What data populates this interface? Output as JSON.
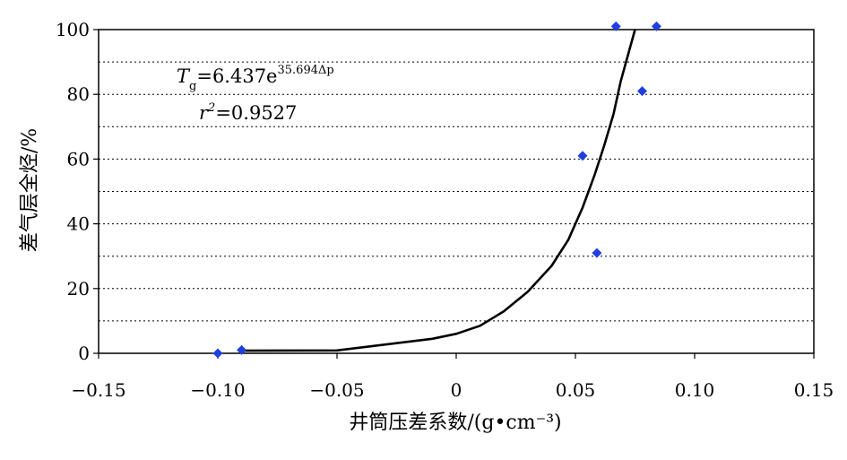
{
  "chart_data": {
    "type": "scatter",
    "title": "",
    "xlabel": "井筒压差系数/(g•cm⁻³)",
    "ylabel": "差气层全烃/%",
    "xlim": [
      -0.15,
      0.15
    ],
    "ylim": [
      0,
      100
    ],
    "x_ticks": [
      -0.15,
      -0.1,
      -0.05,
      0,
      0.05,
      0.1,
      0.15
    ],
    "x_tick_labels": [
      "−0.15",
      "−0.10",
      "−0.05",
      "0",
      "0.05",
      "0.10",
      "0.15"
    ],
    "y_ticks": [
      0,
      20,
      40,
      60,
      80,
      100
    ],
    "y_tick_labels": [
      "0",
      "20",
      "40",
      "60",
      "80",
      "100"
    ],
    "gridlines_y": [
      10,
      20,
      30,
      40,
      50,
      60,
      70,
      80,
      90
    ],
    "grid": "horizontal dotted",
    "series": [
      {
        "type": "scatter",
        "marker": "diamond",
        "color": "#1f3fe0",
        "points": [
          {
            "x": -0.1,
            "y": 0
          },
          {
            "x": -0.09,
            "y": 1
          },
          {
            "x": 0.053,
            "y": 61
          },
          {
            "x": 0.059,
            "y": 31
          },
          {
            "x": 0.067,
            "y": 101
          },
          {
            "x": 0.078,
            "y": 81
          },
          {
            "x": 0.084,
            "y": 101
          }
        ]
      },
      {
        "type": "line",
        "color": "#000000",
        "points": [
          {
            "x": -0.09,
            "y": 0.8
          },
          {
            "x": -0.05,
            "y": 0.9
          },
          {
            "x": -0.01,
            "y": 4.5
          },
          {
            "x": 0.0,
            "y": 6
          },
          {
            "x": 0.01,
            "y": 8.5
          },
          {
            "x": 0.02,
            "y": 13
          },
          {
            "x": 0.03,
            "y": 19
          },
          {
            "x": 0.04,
            "y": 27
          },
          {
            "x": 0.047,
            "y": 35
          },
          {
            "x": 0.053,
            "y": 45
          },
          {
            "x": 0.058,
            "y": 55
          },
          {
            "x": 0.062,
            "y": 64
          },
          {
            "x": 0.066,
            "y": 74
          },
          {
            "x": 0.069,
            "y": 84
          },
          {
            "x": 0.072,
            "y": 92
          },
          {
            "x": 0.075,
            "y": 100
          }
        ]
      }
    ],
    "annotations": {
      "equation_main": "T",
      "equation_sub": "g",
      "equation_rest": "=6.437e",
      "equation_exp": "35.694Δp",
      "r2_r": "r",
      "r2_sup": "2",
      "r2_rest": "=0.9527"
    }
  }
}
